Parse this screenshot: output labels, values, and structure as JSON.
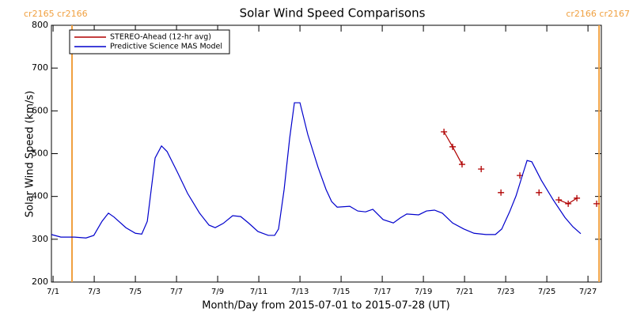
{
  "chart_data": {
    "type": "line",
    "title": "Solar Wind Speed Comparisons",
    "xlabel": "Month/Day from 2015-07-01 to 2015-07-28 (UT)",
    "ylabel": "Solar Wind Speed (km/s)",
    "xlim": [
      0.92,
      27.65
    ],
    "ylim": [
      200,
      800
    ],
    "xticks": [
      {
        "value": 1,
        "label": "7/1"
      },
      {
        "value": 3,
        "label": "7/3"
      },
      {
        "value": 5,
        "label": "7/5"
      },
      {
        "value": 7,
        "label": "7/7"
      },
      {
        "value": 9,
        "label": "7/9"
      },
      {
        "value": 11,
        "label": "7/11"
      },
      {
        "value": 13,
        "label": "7/13"
      },
      {
        "value": 15,
        "label": "7/15"
      },
      {
        "value": 17,
        "label": "7/17"
      },
      {
        "value": 19,
        "label": "7/19"
      },
      {
        "value": 21,
        "label": "7/21"
      },
      {
        "value": 23,
        "label": "7/23"
      },
      {
        "value": 25,
        "label": "7/25"
      },
      {
        "value": 27,
        "label": "7/27"
      }
    ],
    "yticks": [
      200,
      300,
      400,
      500,
      600,
      700,
      800
    ],
    "grid": false,
    "legend": "upper left",
    "boundaries": [
      {
        "x": 1.92,
        "label": "cr2165 cr2166",
        "color": "#f0a040"
      },
      {
        "x": 27.54,
        "label": "cr2166 cr2167",
        "color": "#f0a040"
      }
    ],
    "series": [
      {
        "name": "STEREO-Ahead (12-hr avg)",
        "color": "#b00000",
        "marker": "plus",
        "x": [
          20.0,
          20.42,
          20.88,
          21.35,
          21.81,
          22.3,
          22.77,
          23.2,
          23.69,
          24.15,
          24.62,
          25.1,
          25.58,
          26.04,
          26.46,
          26.9,
          27.42
        ],
        "values": [
          551,
          516,
          475,
          null,
          464,
          null,
          409,
          null,
          449,
          null,
          409,
          null,
          392,
          383,
          396,
          null,
          383
        ]
      },
      {
        "name": "Predictive Science MAS Model",
        "color": "#0000cc",
        "marker": "none",
        "x": [
          0.92,
          1.38,
          2.04,
          2.6,
          2.98,
          3.38,
          3.69,
          3.96,
          4.54,
          5.0,
          5.31,
          5.58,
          5.96,
          6.27,
          6.54,
          7.04,
          7.54,
          8.12,
          8.58,
          8.88,
          9.27,
          9.73,
          10.12,
          10.5,
          10.96,
          11.46,
          11.77,
          11.96,
          12.23,
          12.5,
          12.73,
          13.0,
          13.38,
          13.88,
          14.27,
          14.54,
          14.81,
          15.42,
          15.81,
          16.19,
          16.54,
          17.04,
          17.54,
          17.88,
          18.19,
          18.77,
          19.15,
          19.54,
          19.92,
          20.42,
          20.96,
          21.46,
          22.04,
          22.5,
          22.81,
          23.19,
          23.5,
          23.81,
          24.04,
          24.27,
          24.73,
          25.31,
          25.88,
          26.27,
          26.65
        ],
        "values": [
          311,
          305,
          305,
          303,
          309,
          342,
          361,
          352,
          327,
          314,
          312,
          342,
          490,
          518,
          505,
          457,
          407,
          361,
          333,
          327,
          337,
          355,
          353,
          338,
          318,
          309,
          309,
          324,
          416,
          536,
          619,
          619,
          545,
          468,
          416,
          388,
          375,
          377,
          366,
          364,
          370,
          346,
          338,
          350,
          359,
          357,
          366,
          368,
          361,
          338,
          324,
          314,
          311,
          311,
          324,
          364,
          401,
          449,
          484,
          481,
          438,
          392,
          351,
          329,
          313
        ]
      }
    ]
  }
}
